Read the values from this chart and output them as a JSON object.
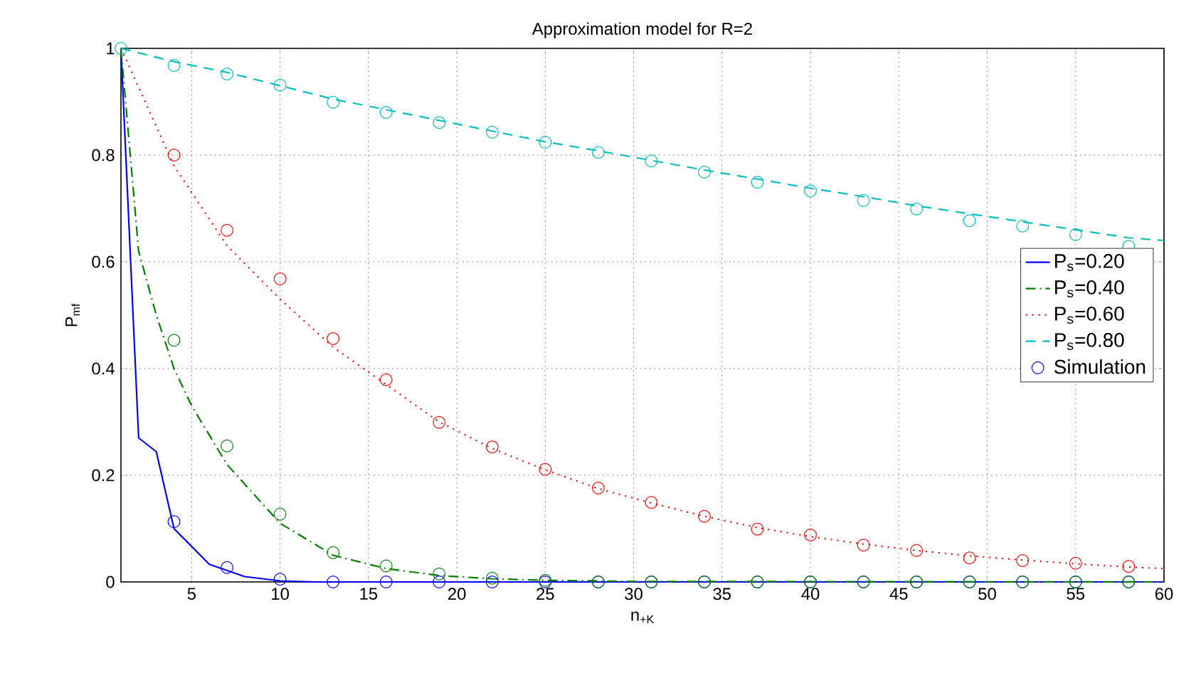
{
  "chart_data": {
    "type": "line",
    "title": "Approximation model for R=2",
    "xlabel": "n$_{+K}$",
    "ylabel": "P$_{mf}$",
    "xlim": [
      1,
      60
    ],
    "xticks": [
      5,
      10,
      15,
      20,
      25,
      30,
      35,
      40,
      45,
      50,
      55,
      60
    ],
    "ylim": [
      0,
      1
    ],
    "yticks": [
      0,
      0.2,
      0.4,
      0.6,
      0.8,
      1
    ],
    "grid": true,
    "legend": "right",
    "series": [
      {
        "name": "P$_{s}$=0.20",
        "color": "#0000ff",
        "line_style": "solid",
        "x": [
          1,
          2,
          3,
          4,
          6,
          8,
          10,
          12,
          60
        ],
        "values": [
          1,
          0.27,
          0.244,
          0.1,
          0.033,
          0.01,
          0.002,
          0,
          0
        ]
      },
      {
        "name": "P$_{s}$=0.40",
        "color": "#008000",
        "line_style": "dashdot",
        "x": [
          1,
          2,
          3,
          4,
          5,
          7,
          10,
          13,
          16,
          19,
          22,
          25,
          30,
          60
        ],
        "values": [
          1,
          0.62,
          0.5,
          0.4,
          0.33,
          0.22,
          0.11,
          0.05,
          0.025,
          0.012,
          0.006,
          0.003,
          0.001,
          0
        ]
      },
      {
        "name": "P$_{s}$=0.60",
        "color": "#ff0000",
        "line_style": "dotted",
        "x": [
          1,
          4,
          7,
          10,
          13,
          16,
          19,
          22,
          25,
          28,
          31,
          34,
          37,
          40,
          43,
          46,
          49,
          52,
          55,
          58,
          60
        ],
        "values": [
          1,
          0.78,
          0.63,
          0.53,
          0.44,
          0.37,
          0.3,
          0.25,
          0.21,
          0.175,
          0.148,
          0.123,
          0.102,
          0.085,
          0.071,
          0.059,
          0.049,
          0.041,
          0.034,
          0.028,
          0.025
        ]
      },
      {
        "name": "P$_{s}$=0.80",
        "color": "#00bfbf",
        "line_style": "dashed",
        "x": [
          1,
          4,
          7,
          10,
          13,
          16,
          19,
          22,
          25,
          28,
          31,
          34,
          37,
          40,
          43,
          46,
          49,
          52,
          55,
          58,
          60
        ],
        "values": [
          1,
          0.975,
          0.955,
          0.93,
          0.905,
          0.885,
          0.865,
          0.845,
          0.825,
          0.808,
          0.79,
          0.772,
          0.755,
          0.738,
          0.722,
          0.705,
          0.69,
          0.675,
          0.66,
          0.645,
          0.64
        ]
      },
      {
        "name": "Simulation",
        "type": "scatter",
        "marker": "circle",
        "color": "#0000ff",
        "x": [
          4,
          7,
          10,
          13,
          16,
          19,
          22,
          25,
          28,
          31,
          34,
          37,
          40,
          43,
          46,
          49,
          52,
          55,
          58
        ],
        "values": [
          0.113,
          0.027,
          0.005,
          0,
          0,
          0,
          0,
          0,
          0,
          0,
          0,
          0,
          0,
          0,
          0,
          0,
          0,
          0,
          0
        ]
      },
      {
        "type": "scatter",
        "marker": "circle",
        "color": "#008000",
        "x": [
          4,
          7,
          10,
          13,
          16,
          19,
          22,
          25,
          28,
          31,
          34,
          37,
          40,
          43,
          46,
          49,
          52,
          55,
          58
        ],
        "values": [
          0.453,
          0.255,
          0.127,
          0.055,
          0.03,
          0.015,
          0.007,
          0.003,
          0,
          0,
          0,
          0,
          0,
          0,
          0,
          0,
          0,
          0,
          0
        ]
      },
      {
        "type": "scatter",
        "marker": "circle",
        "color": "#ff0000",
        "x": [
          4,
          7,
          10,
          13,
          16,
          19,
          22,
          25,
          28,
          31,
          34,
          37,
          40,
          43,
          46,
          49,
          52,
          55,
          58
        ],
        "values": [
          0.8,
          0.659,
          0.568,
          0.456,
          0.379,
          0.299,
          0.253,
          0.211,
          0.176,
          0.149,
          0.123,
          0.099,
          0.088,
          0.069,
          0.059,
          0.045,
          0.04,
          0.035,
          0.029
        ]
      },
      {
        "type": "scatter",
        "marker": "circle",
        "color": "#00bfbf",
        "x": [
          1,
          4,
          7,
          10,
          13,
          16,
          19,
          22,
          25,
          28,
          31,
          34,
          37,
          40,
          43,
          46,
          49,
          52,
          55,
          58
        ],
        "values": [
          1,
          0.968,
          0.952,
          0.931,
          0.899,
          0.88,
          0.861,
          0.843,
          0.824,
          0.805,
          0.789,
          0.768,
          0.749,
          0.733,
          0.715,
          0.699,
          0.677,
          0.667,
          0.651,
          0.629
        ]
      }
    ]
  }
}
